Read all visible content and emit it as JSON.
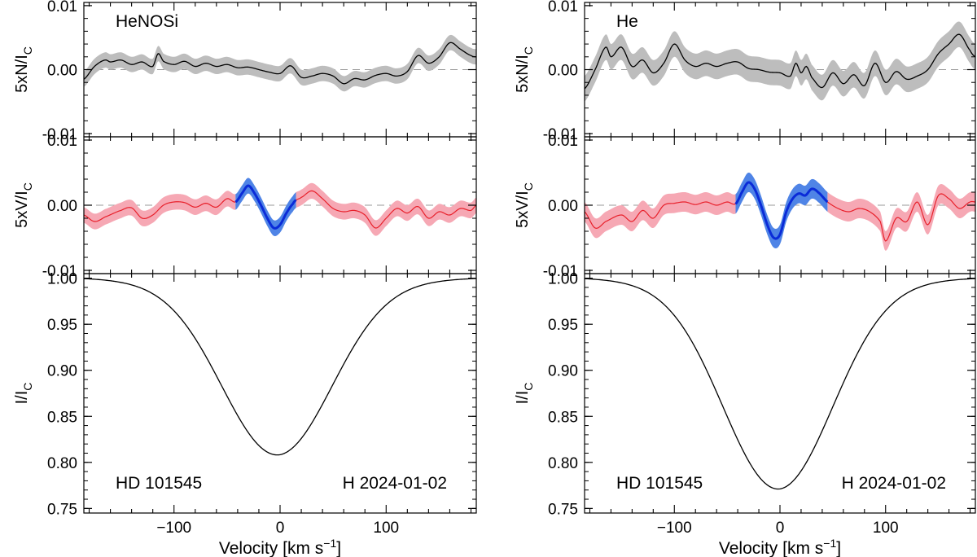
{
  "figure": {
    "xlabel_text": "Velocity [km s",
    "xlabel_sup": "−1",
    "xlabel_close": "]"
  },
  "colors": {
    "noise_band": "#bdbdbd",
    "stokes_band": "#f6a8b4",
    "stokes_line": "#e8202b",
    "detect_band": "#4f84e6",
    "detect_line": "#0a2bd8",
    "profile": "#000000",
    "zero": "#9a9a9a"
  },
  "chart_data": [
    {
      "type": "line",
      "mask": "HeNOSi",
      "star": "HD 101545",
      "obs": "H 2024-01-02",
      "xlim": [
        -185,
        185
      ],
      "xticks": [
        -100,
        0,
        100
      ],
      "xtick_labels": [
        "−100",
        "0",
        "100"
      ],
      "detection_range": [
        -42,
        15
      ],
      "panels": {
        "N": {
          "ylabel": "5xN/I",
          "ylabel_sub": "C",
          "ylim": [
            -0.0105,
            0.0105
          ],
          "yticks": [
            0.01,
            0.0,
            -0.01
          ],
          "ytick_labels": [
            "0.01",
            "0.00",
            "-0.01"
          ],
          "v": [
            -185,
            -175,
            -165,
            -160,
            -150,
            -140,
            -130,
            -120,
            -115,
            -110,
            -100,
            -90,
            -80,
            -70,
            -60,
            -50,
            -40,
            -30,
            -20,
            -10,
            0,
            10,
            20,
            30,
            40,
            50,
            60,
            70,
            80,
            90,
            100,
            110,
            120,
            130,
            140,
            150,
            160,
            170,
            180,
            185
          ],
          "values": [
            -0.0015,
            0.0005,
            0.0015,
            0.0012,
            0.0015,
            0.0008,
            0.0012,
            0.0005,
            0.0025,
            0.0013,
            0.0008,
            0.0013,
            0.0005,
            0.001,
            0.0005,
            0.0008,
            0.0003,
            0.0004,
            0.0,
            -0.0004,
            -0.0006,
            0.0006,
            -0.0012,
            -0.001,
            -0.0006,
            -0.001,
            -0.0022,
            -0.0014,
            -0.0016,
            -0.0009,
            -0.0006,
            -0.001,
            -0.0003,
            0.0022,
            0.001,
            0.002,
            0.0042,
            0.0032,
            0.0022,
            0.002
          ],
          "sigma": 0.0012
        },
        "V": {
          "ylabel": "5xV/I",
          "ylabel_sub": "C",
          "ylim": [
            -0.0105,
            0.0105
          ],
          "yticks": [
            0.01,
            0.0,
            -0.01
          ],
          "ytick_labels": [
            "0.01",
            "0.00",
            "-0.01"
          ],
          "v": [
            -185,
            -175,
            -165,
            -150,
            -140,
            -130,
            -120,
            -110,
            -100,
            -90,
            -80,
            -70,
            -60,
            -50,
            -42,
            -36,
            -30,
            -24,
            -18,
            -12,
            -6,
            0,
            6,
            12,
            15,
            20,
            30,
            40,
            50,
            60,
            70,
            80,
            90,
            100,
            110,
            120,
            130,
            140,
            150,
            160,
            170,
            180,
            185
          ],
          "values": [
            -0.0015,
            -0.0025,
            -0.0018,
            -0.0008,
            -0.0004,
            -0.002,
            -0.0015,
            0.0,
            0.0005,
            0.0004,
            -0.0003,
            0.0003,
            -0.0003,
            0.001,
            0.0005,
            0.0018,
            0.003,
            0.0018,
            0.0,
            -0.002,
            -0.0035,
            -0.003,
            -0.0012,
            0.0002,
            0.0008,
            0.0012,
            0.0022,
            0.001,
            -0.0005,
            -0.001,
            -0.0008,
            -0.0015,
            -0.0035,
            -0.002,
            -0.0005,
            -0.0012,
            -0.0002,
            -0.002,
            -0.001,
            -0.0015,
            -0.0005,
            -0.0008,
            0.0
          ],
          "sigma": 0.0012
        },
        "I": {
          "ylabel": "I/I",
          "ylabel_sub": "C",
          "ylim": [
            0.745,
            1.005
          ],
          "yticks": [
            1.0,
            0.95,
            0.9,
            0.85,
            0.8,
            0.75
          ],
          "ytick_labels": [
            "1.00",
            "0.95",
            "0.90",
            "0.85",
            "0.80",
            "0.75"
          ],
          "center": -3,
          "depth": 0.186,
          "width": 52
        }
      }
    },
    {
      "type": "line",
      "mask": "He",
      "star": "HD 101545",
      "obs": "H 2024-01-02",
      "xlim": [
        -185,
        185
      ],
      "xticks": [
        -100,
        0,
        100
      ],
      "xtick_labels": [
        "−100",
        "0",
        "100"
      ],
      "detection_range": [
        -42,
        45
      ],
      "panels": {
        "N": {
          "ylabel": "5xN/I",
          "ylabel_sub": "C",
          "ylim": [
            -0.0105,
            0.0105
          ],
          "yticks": [
            0.01,
            0.0,
            -0.01
          ],
          "ytick_labels": [
            "0.01",
            "0.00",
            "-0.01"
          ],
          "v": [
            -185,
            -175,
            -165,
            -160,
            -150,
            -140,
            -130,
            -120,
            -110,
            -100,
            -90,
            -80,
            -70,
            -60,
            -50,
            -40,
            -30,
            -20,
            -10,
            0,
            10,
            15,
            20,
            25,
            30,
            40,
            50,
            60,
            70,
            80,
            90,
            100,
            110,
            120,
            130,
            140,
            150,
            160,
            170,
            180,
            185
          ],
          "values": [
            -0.003,
            0.0,
            0.0035,
            0.002,
            0.0035,
            0.0005,
            0.0015,
            -0.0005,
            0.001,
            0.004,
            0.0015,
            0.0005,
            0.001,
            0.0005,
            0.001,
            0.0012,
            0.0002,
            0.0,
            -0.0004,
            -0.0005,
            -0.001,
            0.001,
            -0.0005,
            0.0005,
            -0.0012,
            -0.0028,
            -0.0005,
            -0.0022,
            -0.0008,
            -0.0025,
            0.001,
            -0.002,
            -0.0003,
            -0.0015,
            -0.001,
            0.0,
            0.0025,
            0.004,
            0.0055,
            0.003,
            0.002
          ],
          "sigma": 0.002
        },
        "V": {
          "ylabel": "5xV/I",
          "ylabel_sub": "C",
          "ylim": [
            -0.0105,
            0.0105
          ],
          "yticks": [
            0.01,
            0.0,
            -0.01
          ],
          "ytick_labels": [
            "0.01",
            "0.00",
            "-0.01"
          ],
          "v": [
            -185,
            -175,
            -165,
            -150,
            -140,
            -130,
            -120,
            -110,
            -100,
            -90,
            -80,
            -70,
            -60,
            -50,
            -42,
            -36,
            -30,
            -24,
            -18,
            -12,
            -6,
            0,
            6,
            12,
            18,
            24,
            30,
            36,
            45,
            55,
            65,
            75,
            85,
            95,
            100,
            110,
            120,
            130,
            140,
            150,
            160,
            170,
            180,
            185
          ],
          "values": [
            -0.001,
            -0.0035,
            -0.0025,
            -0.0015,
            -0.0025,
            -0.0008,
            -0.002,
            0.0,
            0.0003,
            0.0005,
            0.0001,
            0.0005,
            0.0,
            0.0005,
            0.0002,
            0.002,
            0.0035,
            0.0025,
            0.0,
            -0.003,
            -0.005,
            -0.0045,
            -0.001,
            0.001,
            0.0018,
            0.0015,
            0.0025,
            0.002,
            0.0005,
            -0.0005,
            -0.001,
            -0.0005,
            -0.001,
            -0.0025,
            -0.0055,
            -0.002,
            -0.0025,
            0.0005,
            -0.003,
            0.0015,
            0.001,
            -0.0005,
            0.0005,
            0.0005
          ],
          "sigma": 0.0015
        },
        "I": {
          "ylabel": "I/I",
          "ylabel_sub": "C",
          "ylim": [
            0.745,
            1.005
          ],
          "yticks": [
            1.0,
            0.95,
            0.9,
            0.85,
            0.8,
            0.75
          ],
          "ytick_labels": [
            "1.00",
            "0.95",
            "0.90",
            "0.85",
            "0.80",
            "0.75"
          ],
          "center": -2,
          "depth": 0.223,
          "width": 52
        }
      }
    }
  ]
}
